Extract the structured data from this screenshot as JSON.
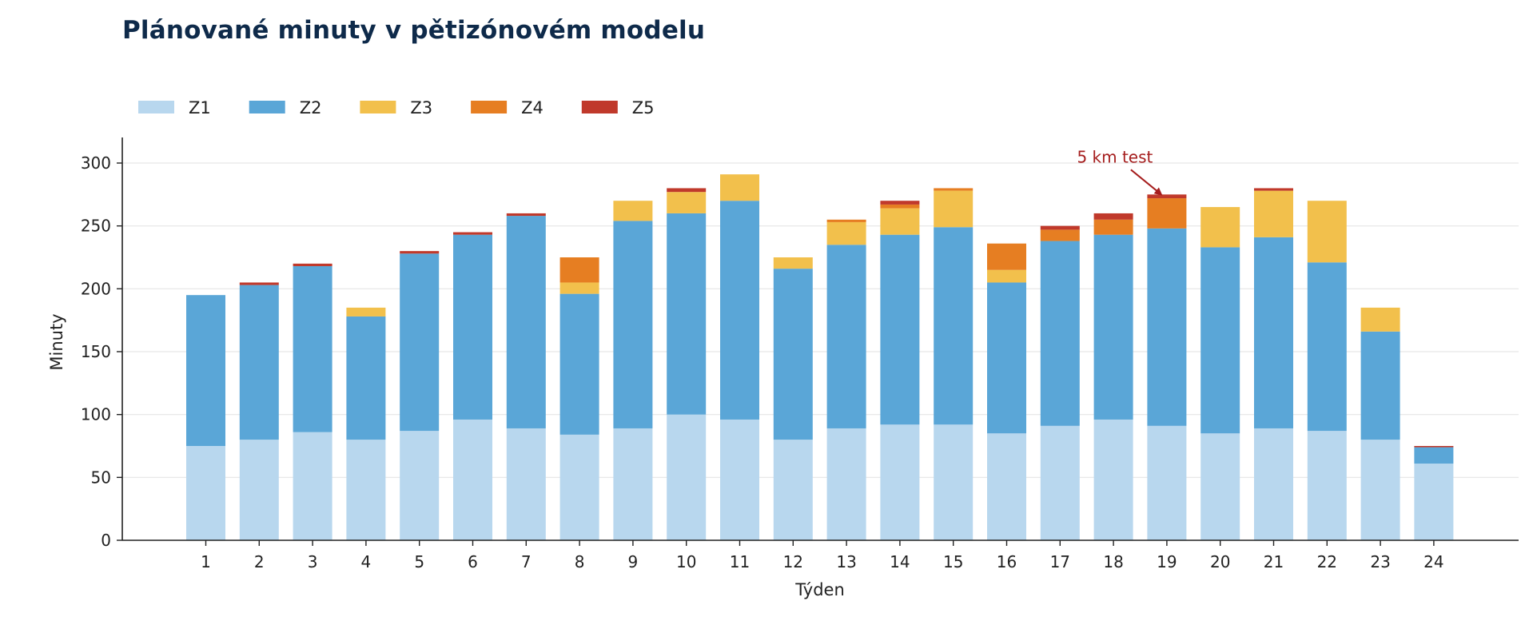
{
  "chart_data": {
    "type": "bar",
    "stacked": true,
    "title": "Plánované minuty v pětizónovém modelu",
    "xlabel": "Týden",
    "ylabel": "Minuty",
    "ylim": [
      0,
      320
    ],
    "yticks": [
      0,
      50,
      100,
      150,
      200,
      250,
      300
    ],
    "grid": "horizontal",
    "legend_position": "top-left",
    "categories": [
      "1",
      "2",
      "3",
      "4",
      "5",
      "6",
      "7",
      "8",
      "9",
      "10",
      "11",
      "12",
      "13",
      "14",
      "15",
      "16",
      "17",
      "18",
      "19",
      "20",
      "21",
      "22",
      "23",
      "24"
    ],
    "series": [
      {
        "name": "Z1",
        "color": "#b8d7ee",
        "values": [
          75,
          80,
          86,
          80,
          87,
          96,
          89,
          84,
          89,
          100,
          96,
          80,
          89,
          92,
          92,
          85,
          91,
          96,
          91,
          85,
          89,
          87,
          80,
          61
        ]
      },
      {
        "name": "Z2",
        "color": "#5aa6d7",
        "values": [
          120,
          123,
          132,
          98,
          141,
          147,
          169,
          112,
          165,
          160,
          174,
          136,
          146,
          151,
          157,
          120,
          147,
          147,
          157,
          148,
          152,
          134,
          86,
          13
        ]
      },
      {
        "name": "Z3",
        "color": "#f2c04c",
        "values": [
          0,
          0,
          0,
          7,
          0,
          0,
          0,
          9,
          16,
          17,
          21,
          9,
          18,
          21,
          29,
          10,
          0,
          0,
          0,
          32,
          37,
          49,
          19,
          0
        ]
      },
      {
        "name": "Z4",
        "color": "#e67e22",
        "values": [
          0,
          0,
          0,
          0,
          0,
          0,
          0,
          20,
          0,
          0,
          0,
          0,
          2,
          3,
          2,
          21,
          9,
          12,
          24,
          0,
          0,
          0,
          0,
          0
        ]
      },
      {
        "name": "Z5",
        "color": "#c0392b",
        "values": [
          0,
          2,
          2,
          0,
          2,
          2,
          2,
          0,
          0,
          3,
          0,
          0,
          0,
          3,
          0,
          0,
          3,
          5,
          3,
          0,
          2,
          0,
          0,
          1
        ]
      }
    ],
    "annotations": [
      {
        "text": "5 km test",
        "category": "19",
        "value": 275,
        "color": "#a51d1d"
      }
    ]
  }
}
